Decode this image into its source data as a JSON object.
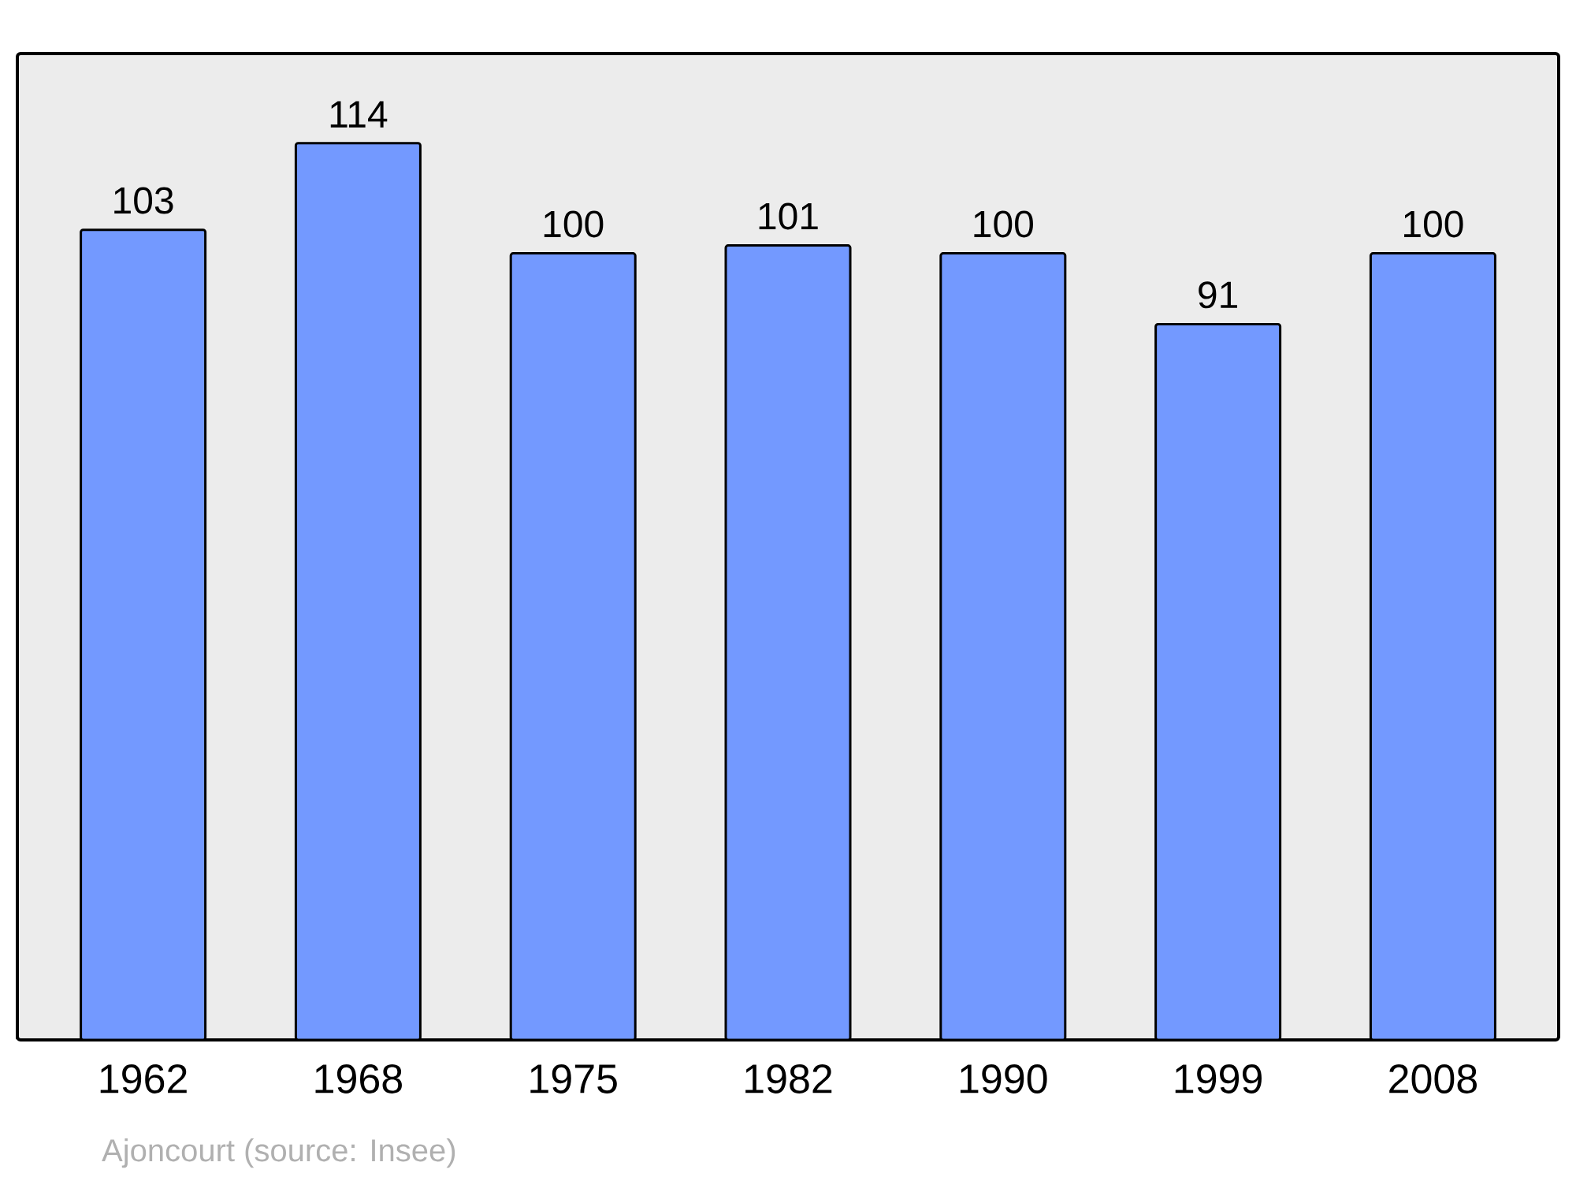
{
  "chart_data": {
    "type": "bar",
    "categories": [
      "1962",
      "1968",
      "1975",
      "1982",
      "1990",
      "1999",
      "2008"
    ],
    "values": [
      103,
      114,
      100,
      101,
      100,
      91,
      100
    ],
    "color": "#7399ff",
    "data_labels": true,
    "annotations": [
      "Ajoncourt    (source: Insee)"
    ]
  }
}
